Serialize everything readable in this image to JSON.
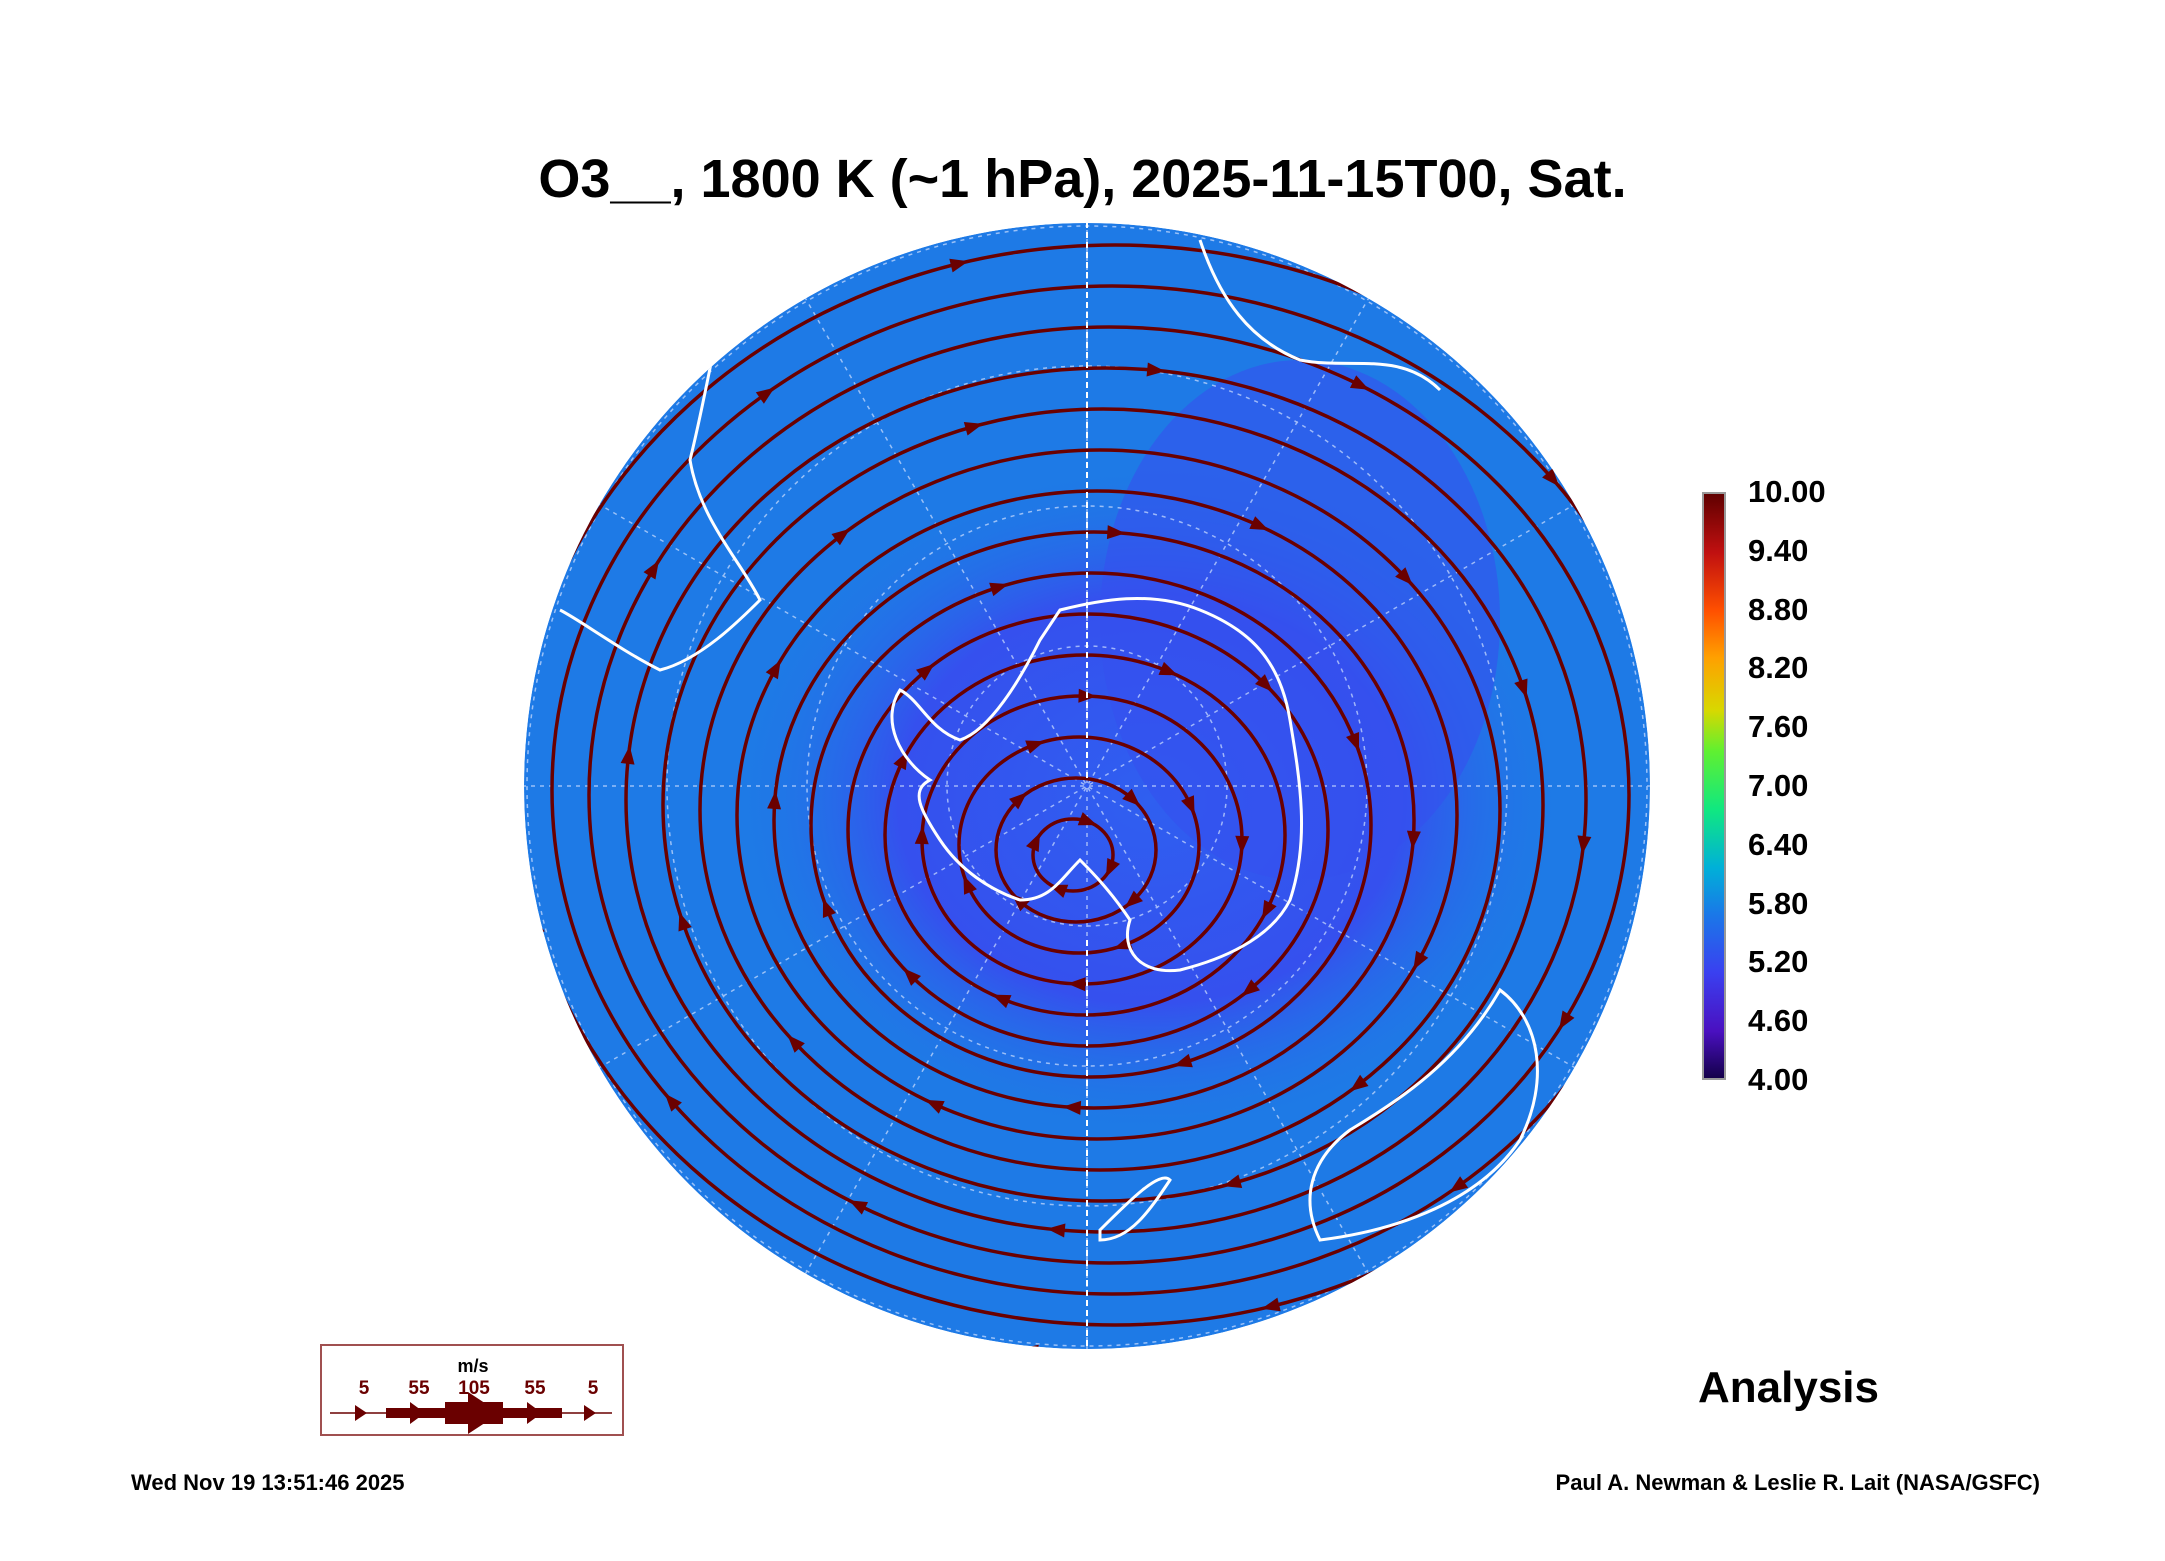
{
  "chart_data": {
    "type": "heatmap",
    "title": "O3__, 1800 K (~1 hPa), 2025-11-15T00, Sat.",
    "projection": "south polar orthographic",
    "colorbar": {
      "min": 4.0,
      "max": 10.0,
      "ticks": [
        "10.00",
        "9.40",
        "8.80",
        "8.20",
        "7.60",
        "7.00",
        "6.40",
        "5.80",
        "5.20",
        "4.60",
        "4.00"
      ]
    },
    "field_range_estimate": [
      4.6,
      5.8
    ],
    "wind_legend": {
      "unit": "m/s",
      "labels": [
        "5",
        "55",
        "105",
        "55",
        "5"
      ]
    },
    "label": "Analysis"
  },
  "footer": {
    "date": "Wed Nov 19 13:51:46 2025",
    "credit": "Paul A. Newman & Leslie R. Lait (NASA/GSFC)"
  },
  "colors": {
    "ocean": "#1e7ae6",
    "low": "#3a4ff0",
    "stream": "#6a0000",
    "coast": "#ffffff"
  }
}
